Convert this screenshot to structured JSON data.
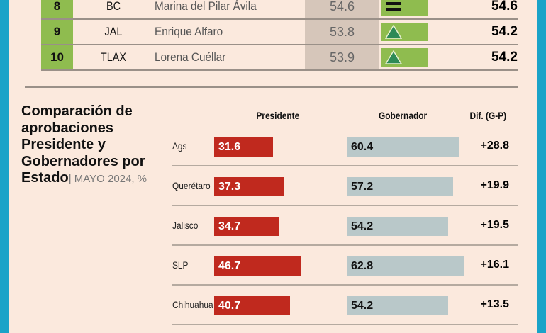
{
  "ranking": [
    {
      "rank": "8",
      "state": "BC",
      "governor": "Marina del Pilar Ávila",
      "previous": "54.6",
      "trend": "equal",
      "current": "54.6"
    },
    {
      "rank": "9",
      "state": "JAL",
      "governor": "Enrique Alfaro",
      "previous": "53.8",
      "trend": "up",
      "current": "54.2"
    },
    {
      "rank": "10",
      "state": "TLAX",
      "governor": "Lorena Cuéllar",
      "previous": "53.9",
      "trend": "up",
      "current": "54.2"
    }
  ],
  "chart_data": {
    "type": "bar",
    "title": "Comparación de aprobaciones Presidente y Gobernadores por Estado",
    "subtitle": "| MAYO 2024, %",
    "headers": {
      "president": "Presidente",
      "governor": "Gobernador",
      "diff": "Dif. (G-P)"
    },
    "categories": [
      "Ags",
      "Querétaro",
      "Jalisco",
      "SLP",
      "Chihuahua"
    ],
    "series": [
      {
        "name": "Presidente",
        "values": [
          31.6,
          37.3,
          34.7,
          46.7,
          40.7
        ],
        "color": "#c0291e"
      },
      {
        "name": "Gobernador",
        "values": [
          60.4,
          57.2,
          54.2,
          62.8,
          54.2
        ],
        "color": "#b9c8c9"
      }
    ],
    "diff": [
      "+28.8",
      "+19.9",
      "+19.5",
      "+16.1",
      "+13.5"
    ]
  }
}
